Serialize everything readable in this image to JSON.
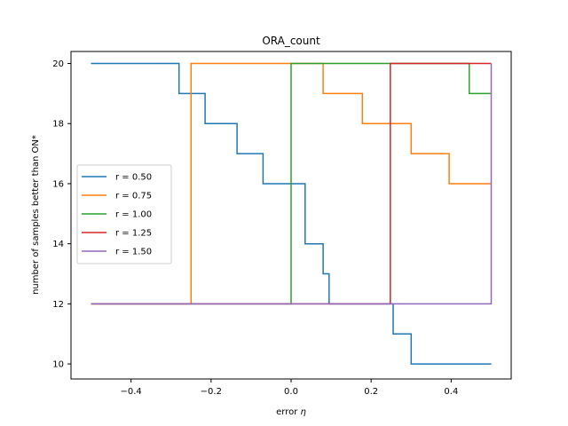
{
  "chart_data": {
    "type": "line",
    "title": "ORA_count",
    "xlabel": "error ",
    "xlabel_symbol": "η",
    "ylabel": "number of samples better than ON*",
    "xlim": [
      -0.55,
      0.55
    ],
    "ylim": [
      9.5,
      20.4
    ],
    "xticks": [
      -0.4,
      -0.2,
      0.0,
      0.2,
      0.4
    ],
    "xtick_labels": [
      "−0.4",
      "−0.2",
      "0.0",
      "0.2",
      "0.4"
    ],
    "yticks": [
      10,
      12,
      14,
      16,
      18,
      20
    ],
    "ytick_labels": [
      "10",
      "12",
      "14",
      "16",
      "18",
      "20"
    ],
    "legend_position": "center-left",
    "series": [
      {
        "name": "r = 0.50",
        "color": "#1f77b4",
        "x": [
          -0.5,
          -0.28,
          -0.28,
          -0.215,
          -0.215,
          -0.135,
          -0.135,
          -0.07,
          -0.07,
          0.035,
          0.035,
          0.08,
          0.08,
          0.095,
          0.095,
          0.255,
          0.255,
          0.3,
          0.3,
          0.5
        ],
        "y": [
          20,
          20,
          19,
          19,
          18,
          18,
          17,
          17,
          16,
          16,
          14,
          14,
          13,
          13,
          12,
          12,
          11,
          11,
          10,
          10
        ]
      },
      {
        "name": "r = 0.75",
        "color": "#ff7f0e",
        "x": [
          -0.5,
          -0.25,
          -0.25,
          0.08,
          0.08,
          0.178,
          0.178,
          0.3,
          0.3,
          0.395,
          0.395,
          0.5
        ],
        "y": [
          12,
          12,
          20,
          20,
          19,
          19,
          18,
          18,
          17,
          17,
          16,
          16
        ]
      },
      {
        "name": "r = 1.00",
        "color": "#2ca02c",
        "x": [
          -0.5,
          0.0,
          0.0,
          0.445,
          0.445,
          0.5
        ],
        "y": [
          12,
          12,
          20,
          20,
          19,
          19
        ]
      },
      {
        "name": "r = 1.25",
        "color": "#d62728",
        "x": [
          -0.5,
          0.248,
          0.248,
          0.5
        ],
        "y": [
          12,
          12,
          20,
          20
        ]
      },
      {
        "name": "r = 1.50",
        "color": "#9467bd",
        "x": [
          -0.5,
          0.5,
          0.5
        ],
        "y": [
          12,
          12,
          20
        ]
      }
    ]
  }
}
